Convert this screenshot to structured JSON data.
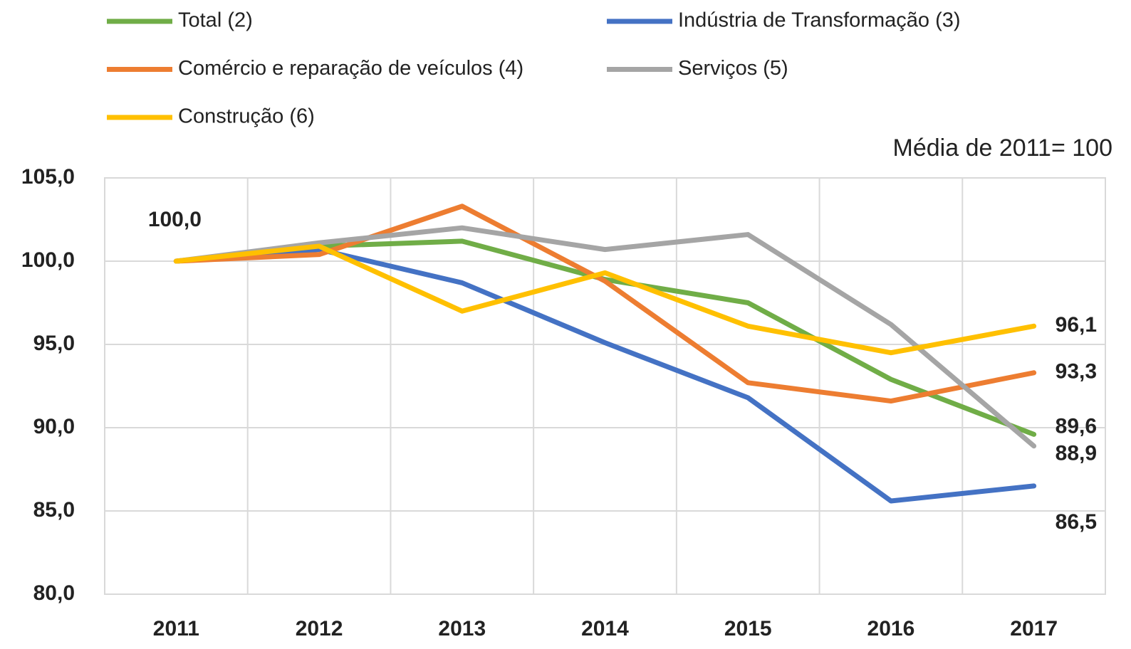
{
  "chart_data": {
    "type": "line",
    "subtitle": "Média de 2011= 100",
    "categories": [
      "2011",
      "2012",
      "2013",
      "2014",
      "2015",
      "2016",
      "2017"
    ],
    "series": [
      {
        "name": "Total (2)",
        "color": "#70ad47",
        "values": [
          100,
          100.9,
          101.2,
          98.9,
          97.5,
          92.9,
          89.6
        ],
        "value_labels": [
          "100,0",
          null,
          null,
          null,
          null,
          null,
          "89,6"
        ]
      },
      {
        "name": "Indústria de Transformação (3)",
        "color": "#4472c4",
        "values": [
          100,
          100.7,
          98.7,
          95.1,
          91.8,
          85.6,
          86.5
        ],
        "value_labels": [
          null,
          null,
          null,
          null,
          null,
          null,
          "86,5"
        ]
      },
      {
        "name": "Comércio e reparação de veículos (4)",
        "color": "#ed7d31",
        "values": [
          100,
          100.4,
          103.3,
          98.8,
          92.7,
          91.6,
          93.3
        ],
        "value_labels": [
          null,
          null,
          null,
          null,
          null,
          null,
          "93,3"
        ]
      },
      {
        "name": "Serviços (5)",
        "color": "#a5a5a5",
        "values": [
          100,
          101.1,
          102.0,
          100.7,
          101.6,
          96.2,
          88.9
        ],
        "value_labels": [
          null,
          null,
          null,
          null,
          null,
          null,
          "88,9"
        ]
      },
      {
        "name": "Construção (6)",
        "color": "#ffc000",
        "values": [
          100,
          100.9,
          97.0,
          99.3,
          96.1,
          94.5,
          96.1
        ],
        "value_labels": [
          null,
          null,
          null,
          null,
          null,
          null,
          "96,1"
        ]
      }
    ],
    "ylim": [
      80,
      105
    ],
    "yticks": [
      {
        "value": 80,
        "label": "80,0"
      },
      {
        "value": 85,
        "label": "85,0"
      },
      {
        "value": 90,
        "label": "90,0"
      },
      {
        "value": 95,
        "label": "95,0"
      },
      {
        "value": 100,
        "label": "100,0"
      },
      {
        "value": 105,
        "label": "105,0"
      }
    ],
    "grid": true
  }
}
